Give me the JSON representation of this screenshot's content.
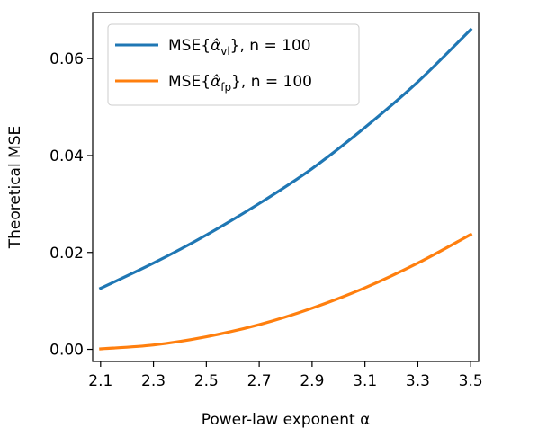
{
  "chart_data": {
    "type": "line",
    "xlabel": "Power-law exponent α",
    "ylabel": "Theoretical MSE",
    "xlim": [
      2.07,
      3.53
    ],
    "ylim": [
      -0.0025,
      0.0695
    ],
    "xticks": [
      "2.1",
      "2.3",
      "2.5",
      "2.7",
      "2.9",
      "3.1",
      "3.3",
      "3.5"
    ],
    "yticks": [
      "0.00",
      "0.02",
      "0.04",
      "0.06"
    ],
    "x": [
      2.1,
      2.3,
      2.5,
      2.7,
      2.9,
      3.1,
      3.3,
      3.5
    ],
    "series": [
      {
        "name": "MSE{α̂vl}, n = 100",
        "legend": {
          "prefix": "MSE{",
          "symbol": "α̂",
          "subscript": "vl",
          "suffix": "}, n = 100"
        },
        "color": "#1f77b4",
        "values": [
          0.0126,
          0.0178,
          0.0236,
          0.0301,
          0.0373,
          0.0458,
          0.0552,
          0.066
        ]
      },
      {
        "name": "MSE{α̂fp}, n = 100",
        "legend": {
          "prefix": "MSE{",
          "symbol": "α̂",
          "subscript": "fp",
          "suffix": "}, n = 100"
        },
        "color": "#ff7f0e",
        "values": [
          0.0001,
          0.0009,
          0.0026,
          0.0051,
          0.0085,
          0.0127,
          0.0178,
          0.0237
        ]
      }
    ],
    "grid": false,
    "legend_position": "upper-left"
  }
}
